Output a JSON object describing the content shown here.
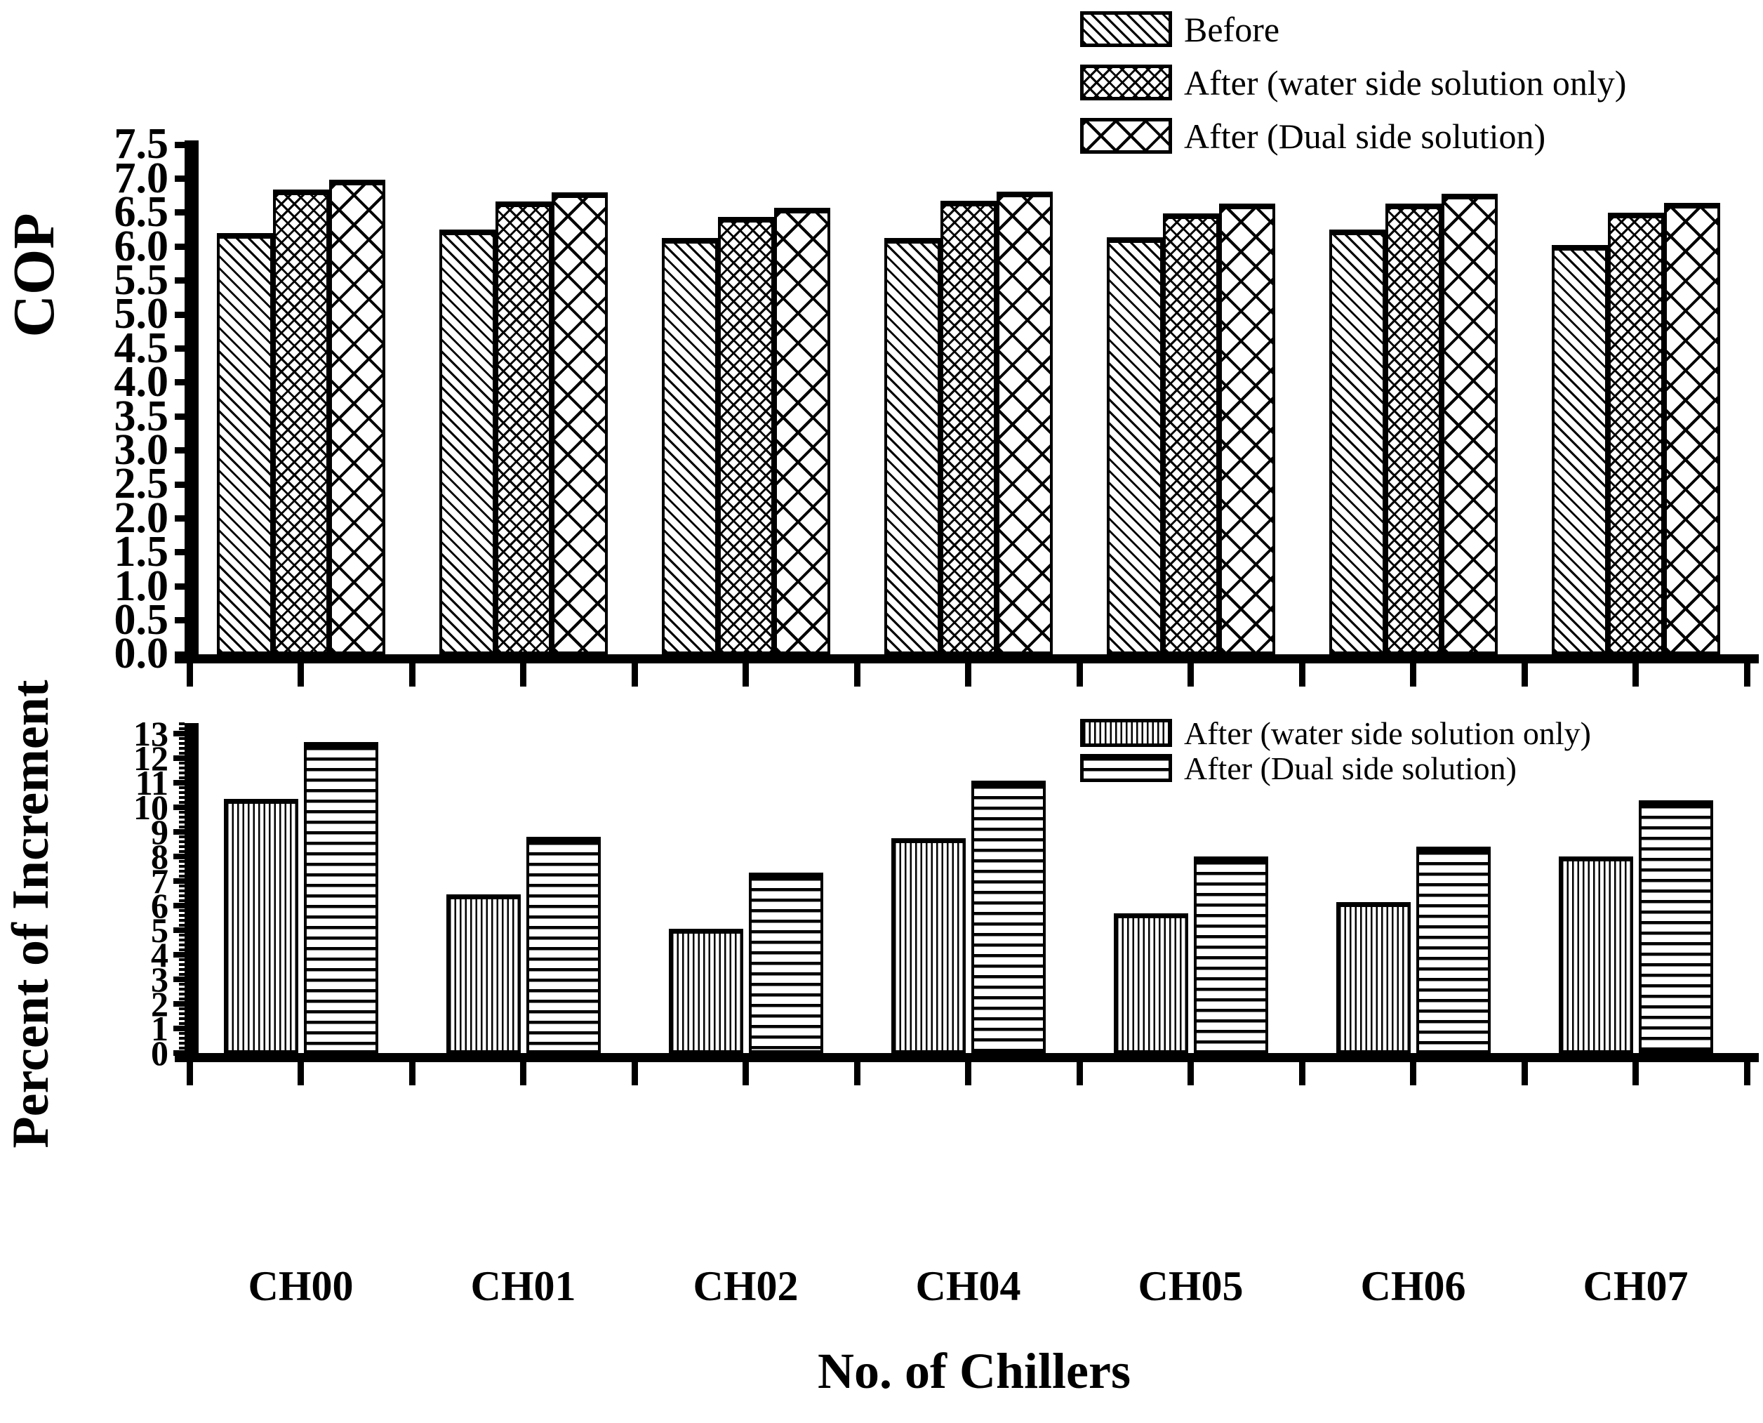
{
  "figure": {
    "background": "#ffffff",
    "ink": "#000000"
  },
  "chart_data": [
    {
      "type": "bar",
      "title": "",
      "ylabel": "COP",
      "xlabel": "",
      "categories": [
        "CH00",
        "CH01",
        "CH02",
        "CH04",
        "CH05",
        "CH06",
        "CH07"
      ],
      "series": [
        {
          "name": "Before",
          "pattern": "diag",
          "values": [
            6.2,
            6.25,
            6.13,
            6.13,
            6.14,
            6.25,
            6.02
          ]
        },
        {
          "name": "After (water side solution only)",
          "pattern": "cross-sm",
          "values": [
            6.84,
            6.66,
            6.44,
            6.67,
            6.49,
            6.63,
            6.5
          ]
        },
        {
          "name": "After (Dual side solution)",
          "pattern": "cross-lg",
          "values": [
            6.98,
            6.8,
            6.57,
            6.81,
            6.63,
            6.78,
            6.64
          ]
        }
      ],
      "ylim": [
        0,
        7.5
      ],
      "ytick_step": 0.5,
      "ytick_labels": [
        "0.0",
        "0.5",
        "1.0",
        "1.5",
        "2.0",
        "2.5",
        "3.0",
        "3.5",
        "4.0",
        "4.5",
        "5.0",
        "5.5",
        "6.0",
        "6.5",
        "7.0",
        "7.5"
      ],
      "grid": false,
      "legend_position": "top-right",
      "show_category_labels": false
    },
    {
      "type": "bar",
      "title": "",
      "ylabel": "Percent of Increment",
      "xlabel": "No. of Chillers",
      "categories": [
        "CH00",
        "CH01",
        "CH02",
        "CH04",
        "CH05",
        "CH06",
        "CH07"
      ],
      "series": [
        {
          "name": "After (water side solution only)",
          "pattern": "vlines",
          "values": [
            10.35,
            6.45,
            5.05,
            8.75,
            5.7,
            6.15,
            8.0
          ]
        },
        {
          "name": "After (Dual side solution)",
          "pattern": "hlines",
          "values": [
            12.65,
            8.8,
            7.35,
            11.1,
            8.0,
            8.4,
            10.3
          ]
        }
      ],
      "ylim": [
        0,
        13
      ],
      "ytick_step": 1,
      "minor_tick_step": 0.2,
      "ytick_labels": [
        "0",
        "1",
        "2",
        "3",
        "4",
        "5",
        "6",
        "7",
        "8",
        "9",
        "10",
        "11",
        "12",
        "13"
      ],
      "grid": false,
      "legend_position": "top-right",
      "show_category_labels": true
    }
  ]
}
